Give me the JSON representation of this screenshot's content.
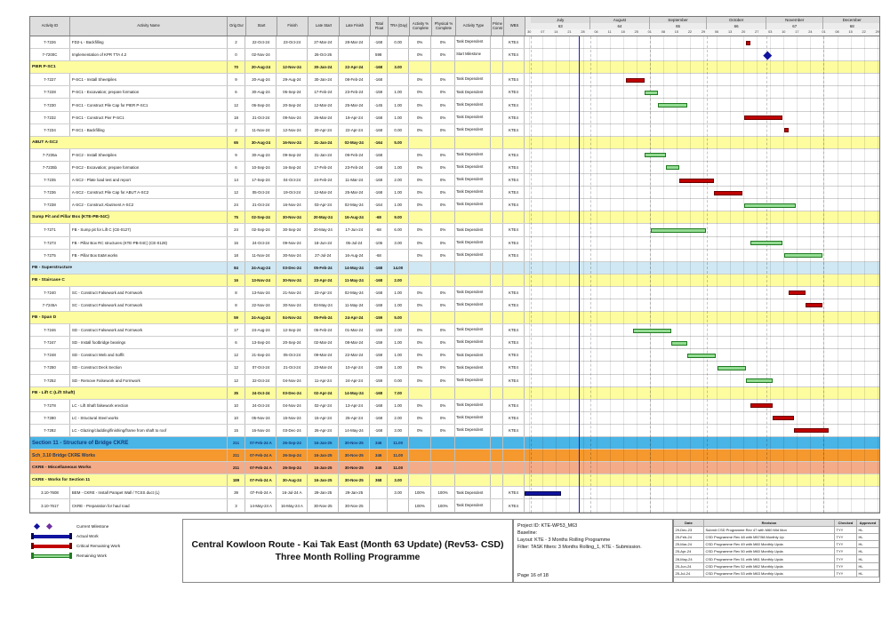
{
  "colors": {
    "critical": "#c00000",
    "remaining": "#93dc93",
    "actual": "#10139e",
    "milestone": "#10139e",
    "data_date_line": "#2020b8",
    "group_yellow": "#fdfc9e",
    "group_lightblue": "#cfe8f3",
    "section_cyan": "#49b4e6",
    "group_orange": "#f5982e",
    "group_salmon": "#f4ab88"
  },
  "columns": [
    {
      "key": "id",
      "label": "Activity ID"
    },
    {
      "key": "name",
      "label": "Activity Name"
    },
    {
      "key": "od",
      "label": "Orig Dur"
    },
    {
      "key": "start",
      "label": "Start"
    },
    {
      "key": "finish",
      "label": "Finish"
    },
    {
      "key": "ls",
      "label": "Late Start"
    },
    {
      "key": "lf",
      "label": "Late Finish"
    },
    {
      "key": "tf",
      "label": "Total Float"
    },
    {
      "key": "tra",
      "label": "TRA (Day)"
    },
    {
      "key": "ap",
      "label": "Activity % Complete"
    },
    {
      "key": "pp",
      "label": "Physical % Complete"
    },
    {
      "key": "at",
      "label": "Activity Type"
    },
    {
      "key": "pc",
      "label": "Prime Const"
    },
    {
      "key": "wbs",
      "label": "WBS"
    }
  ],
  "timeline": {
    "start": "28-Jun-24",
    "end": "31-Dec-24",
    "data_date": "26-Jul-24",
    "months": [
      {
        "label": "July",
        "num": "63",
        "from": "01-Jul-24"
      },
      {
        "label": "August",
        "num": "64",
        "from": "01-Aug-24"
      },
      {
        "label": "September",
        "num": "65",
        "from": "01-Sep-24"
      },
      {
        "label": "October",
        "num": "66",
        "from": "01-Oct-24"
      },
      {
        "label": "November",
        "num": "67",
        "from": "01-Nov-24"
      },
      {
        "label": "December",
        "num": "68",
        "from": "01-Dec-24"
      }
    ],
    "week_ticks": {
      "first": "30-Jun-24",
      "labels": [
        "30",
        "07",
        "14",
        "21",
        "28",
        "04",
        "11",
        "18",
        "25",
        "01",
        "08",
        "15",
        "22",
        "29",
        "06",
        "13",
        "20",
        "27",
        "03",
        "10",
        "17",
        "24",
        "01",
        "08",
        "15",
        "22",
        "29"
      ]
    }
  },
  "rows": [
    {
      "style": "task",
      "id": "7-7226",
      "name": "FD2-L -  Backfilling",
      "od": "2",
      "start": "22-Oct-24",
      "finish": "23-Oct-24",
      "ls": "27-Mar-24",
      "lf": "28-Mar-24",
      "tf": "-168",
      "tra": "0.00",
      "ap": "0%",
      "pp": "0%",
      "at": "Task Dependent",
      "wbs": "KTE4",
      "bar": {
        "kind": "critical",
        "s": "22-Oct-24",
        "e": "23-Oct-24"
      }
    },
    {
      "style": "task",
      "id": "7-7200C",
      "name": "Implementation of KPR TTA 4.2",
      "od": "0",
      "start": "02-Nov-24",
      "finish": "",
      "ls": "26-Oct-26",
      "lf": "",
      "tf": "598",
      "tra": "",
      "ap": "0%",
      "pp": "0%",
      "at": "Start Milestone",
      "wbs": "KTE4",
      "bar": {
        "kind": "milestone",
        "s": "02-Nov-24"
      }
    },
    {
      "style": "yellow",
      "name": "PIER P-SC1",
      "od": "70",
      "start": "20-Aug-24",
      "finish": "12-Nov-24",
      "ls": "30-Jan-24",
      "lf": "22-Apr-24",
      "tf": "-168",
      "tra": "3.00"
    },
    {
      "style": "task",
      "id": "7-7227",
      "name": "P-SC1 - Install Sheetpiles",
      "od": "9",
      "start": "20-Aug-24",
      "finish": "29-Aug-24",
      "ls": "30-Jan-24",
      "lf": "08-Feb-24",
      "tf": "-168",
      "tra": "",
      "ap": "0%",
      "pp": "0%",
      "at": "Task Dependent",
      "wbs": "KTE4",
      "bar": {
        "kind": "critical",
        "s": "20-Aug-24",
        "e": "29-Aug-24"
      }
    },
    {
      "style": "task",
      "id": "7-7228",
      "name": "P-SC1 - Excavation; prepare formation",
      "od": "6",
      "start": "30-Aug-24",
      "finish": "05-Sep-24",
      "ls": "17-Feb-24",
      "lf": "23-Feb-24",
      "tf": "-159",
      "tra": "1.00",
      "ap": "0%",
      "pp": "0%",
      "at": "Task Dependent",
      "wbs": "KTE4",
      "bar": {
        "kind": "remaining",
        "s": "30-Aug-24",
        "e": "05-Sep-24"
      }
    },
    {
      "style": "task",
      "id": "7-7230",
      "name": "P-SC1 - Construct Pile Cap for PIER P-SC1",
      "od": "12",
      "start": "06-Sep-24",
      "finish": "20-Sep-24",
      "ls": "12-Mar-24",
      "lf": "25-Mar-24",
      "tf": "-145",
      "tra": "1.00",
      "ap": "0%",
      "pp": "0%",
      "at": "Task Dependent",
      "wbs": "KTE4",
      "bar": {
        "kind": "remaining",
        "s": "06-Sep-24",
        "e": "20-Sep-24"
      }
    },
    {
      "style": "task",
      "id": "7-7232",
      "name": "P-SC1 - Construct Pier P-SC1",
      "od": "18",
      "start": "21-Oct-24",
      "finish": "09-Nov-24",
      "ls": "26-Mar-24",
      "lf": "19-Apr-24",
      "tf": "-168",
      "tra": "1.00",
      "ap": "0%",
      "pp": "0%",
      "at": "Task Dependent",
      "wbs": "KTE4",
      "bar": {
        "kind": "critical",
        "s": "21-Oct-24",
        "e": "09-Nov-24"
      }
    },
    {
      "style": "task",
      "id": "7-7234",
      "name": "P-SC1 -  Backfilling",
      "od": "2",
      "start": "11-Nov-24",
      "finish": "12-Nov-24",
      "ls": "20-Apr-24",
      "lf": "22-Apr-24",
      "tf": "-168",
      "tra": "0.00",
      "ap": "0%",
      "pp": "0%",
      "at": "Task Dependent",
      "wbs": "KTE4",
      "bar": {
        "kind": "critical",
        "s": "11-Nov-24",
        "e": "12-Nov-24"
      }
    },
    {
      "style": "yellow",
      "name": "ABUT A-SC2",
      "od": "65",
      "start": "30-Aug-24",
      "finish": "16-Nov-24",
      "ls": "31-Jan-24",
      "lf": "02-May-24",
      "tf": "-164",
      "tra": "5.00"
    },
    {
      "style": "task",
      "id": "7-7235a",
      "name": "P-SC2 - Install Sheetpiles",
      "od": "9",
      "start": "30-Aug-24",
      "finish": "09-Sep-24",
      "ls": "31-Jan-24",
      "lf": "09-Feb-24",
      "tf": "-168",
      "tra": "",
      "ap": "0%",
      "pp": "0%",
      "at": "Task Dependent",
      "wbs": "KTE4",
      "bar": {
        "kind": "remaining",
        "s": "30-Aug-24",
        "e": "09-Sep-24"
      }
    },
    {
      "style": "task",
      "id": "7-7235b",
      "name": "P-SC2 - Excavation; prepare formation",
      "od": "6",
      "start": "10-Sep-24",
      "finish": "16-Sep-24",
      "ls": "17-Feb-24",
      "lf": "23-Feb-24",
      "tf": "-168",
      "tra": "1.00",
      "ap": "0%",
      "pp": "0%",
      "at": "Task Dependent",
      "wbs": "KTE4",
      "bar": {
        "kind": "remaining",
        "s": "10-Sep-24",
        "e": "16-Sep-24"
      }
    },
    {
      "style": "task",
      "id": "7-7235",
      "name": "A-SC2 - Plate load test and report",
      "od": "14",
      "start": "17-Sep-24",
      "finish": "04-Oct-24",
      "ls": "24-Feb-24",
      "lf": "11-Mar-24",
      "tf": "-168",
      "tra": "2.00",
      "ap": "0%",
      "pp": "0%",
      "at": "Task Dependent",
      "wbs": "KTE4",
      "bar": {
        "kind": "critical",
        "s": "17-Sep-24",
        "e": "04-Oct-24"
      }
    },
    {
      "style": "task",
      "id": "7-7236",
      "name": "A-SC2 - Construct Pile Cap for ABUT A-SC2",
      "od": "12",
      "start": "05-Oct-24",
      "finish": "19-Oct-24",
      "ls": "12-Mar-24",
      "lf": "25-Mar-24",
      "tf": "-168",
      "tra": "1.00",
      "ap": "0%",
      "pp": "0%",
      "at": "Task Dependent",
      "wbs": "KTE4",
      "bar": {
        "kind": "critical",
        "s": "05-Oct-24",
        "e": "19-Oct-24"
      }
    },
    {
      "style": "task",
      "id": "7-7238",
      "name": "A-SC2 - Construct Abutment A-SC2",
      "od": "24",
      "start": "21-Oct-24",
      "finish": "16-Nov-24",
      "ls": "03-Apr-24",
      "lf": "02-May-24",
      "tf": "-164",
      "tra": "1.00",
      "ap": "0%",
      "pp": "0%",
      "at": "Task Dependent",
      "wbs": "KTE4",
      "bar": {
        "kind": "remaining",
        "s": "21-Oct-24",
        "e": "16-Nov-24"
      }
    },
    {
      "style": "yellow",
      "name": "Sump Pit and Pillar Box (KTE-PB-04C)",
      "od": "75",
      "start": "02-Sep-24",
      "finish": "30-Nov-24",
      "ls": "20-May-24",
      "lf": "16-Aug-24",
      "tf": "-68",
      "tra": "9.00"
    },
    {
      "style": "task",
      "id": "7-7271",
      "name": "FB - Sump pit for Lift C (CE-0127)",
      "od": "24",
      "start": "02-Sep-24",
      "finish": "30-Sep-24",
      "ls": "20-May-24",
      "lf": "17-Jun-24",
      "tf": "-68",
      "tra": "6.00",
      "ap": "0%",
      "pp": "0%",
      "at": "Task Dependent",
      "wbs": "KTE4",
      "bar": {
        "kind": "remaining",
        "s": "02-Sep-24",
        "e": "30-Sep-24"
      }
    },
    {
      "style": "task",
      "id": "7-7273",
      "name": "FB - Pillar Box RC structures (KTE-PB-04C) (CE-0128)",
      "od": "15",
      "start": "24-Oct-24",
      "finish": "09-Nov-24",
      "ls": "18-Jun-24",
      "lf": "05-Jul-24",
      "tf": "-106",
      "tra": "3.00",
      "ap": "0%",
      "pp": "0%",
      "at": "Task Dependent",
      "wbs": "KTE4",
      "bar": {
        "kind": "remaining",
        "s": "24-Oct-24",
        "e": "09-Nov-24"
      }
    },
    {
      "style": "task",
      "id": "7-7275",
      "name": "FB - Pillar Box E&M works",
      "od": "18",
      "start": "11-Nov-24",
      "finish": "30-Nov-24",
      "ls": "27-Jul-24",
      "lf": "16-Aug-24",
      "tf": "-68",
      "tra": "",
      "ap": "0%",
      "pp": "0%",
      "at": "Task Dependent",
      "wbs": "KTE4",
      "bar": {
        "kind": "remaining",
        "s": "11-Nov-24",
        "e": "30-Nov-24"
      }
    },
    {
      "style": "lightblue",
      "name": "FB - Superstructure",
      "od": "84",
      "start": "24-Aug-24",
      "finish": "03-Dec-24",
      "ls": "05-Feb-24",
      "lf": "14-May-24",
      "tf": "-168",
      "tra": "14.00"
    },
    {
      "style": "yellow",
      "name": "FB - Staircase C",
      "od": "16",
      "start": "13-Nov-24",
      "finish": "30-Nov-24",
      "ls": "23-Apr-24",
      "lf": "11-May-24",
      "tf": "-168",
      "tra": "2.00"
    },
    {
      "style": "task",
      "id": "7-7240",
      "name": "SC - Construct Falsework and Formwork",
      "od": "8",
      "start": "13-Nov-24",
      "finish": "21-Nov-24",
      "ls": "23-Apr-24",
      "lf": "02-May-24",
      "tf": "-168",
      "tra": "1.00",
      "ap": "0%",
      "pp": "0%",
      "at": "Task Dependent",
      "wbs": "KTE4",
      "bar": {
        "kind": "critical",
        "s": "13-Nov-24",
        "e": "21-Nov-24"
      }
    },
    {
      "style": "task",
      "id": "7-7245A",
      "name": "SC - Construct Falsework and Formwork",
      "od": "8",
      "start": "22-Nov-24",
      "finish": "30-Nov-24",
      "ls": "03-May-24",
      "lf": "11-May-24",
      "tf": "-168",
      "tra": "1.00",
      "ap": "0%",
      "pp": "0%",
      "at": "Task Dependent",
      "wbs": "KTE4",
      "bar": {
        "kind": "critical",
        "s": "22-Nov-24",
        "e": "30-Nov-24"
      }
    },
    {
      "style": "yellow",
      "name": "FB - Span D",
      "od": "59",
      "start": "24-Aug-24",
      "finish": "04-Nov-24",
      "ls": "05-Feb-24",
      "lf": "24-Apr-24",
      "tf": "-159",
      "tra": "5.00"
    },
    {
      "style": "task",
      "id": "7-7246",
      "name": "SD - Construct Falsework and Formwork",
      "od": "17",
      "start": "24-Aug-24",
      "finish": "12-Sep-24",
      "ls": "05-Feb-24",
      "lf": "01-Mar-24",
      "tf": "-159",
      "tra": "2.00",
      "ap": "0%",
      "pp": "0%",
      "at": "Task Dependent",
      "wbs": "KTE4",
      "bar": {
        "kind": "remaining",
        "s": "24-Aug-24",
        "e": "12-Sep-24"
      }
    },
    {
      "style": "task",
      "id": "7-7247",
      "name": "SD - Install footbridge bearings",
      "od": "6",
      "start": "13-Sep-24",
      "finish": "20-Sep-24",
      "ls": "02-Mar-24",
      "lf": "08-Mar-24",
      "tf": "-159",
      "tra": "1.00",
      "ap": "0%",
      "pp": "0%",
      "at": "Task Dependent",
      "wbs": "KTE4",
      "bar": {
        "kind": "remaining",
        "s": "13-Sep-24",
        "e": "20-Sep-24"
      }
    },
    {
      "style": "task",
      "id": "7-7248",
      "name": "SD - Construct Web and Soffit",
      "od": "12",
      "start": "21-Sep-24",
      "finish": "05-Oct-24",
      "ls": "09-Mar-24",
      "lf": "22-Mar-24",
      "tf": "-159",
      "tra": "1.00",
      "ap": "0%",
      "pp": "0%",
      "at": "Task Dependent",
      "wbs": "KTE4",
      "bar": {
        "kind": "remaining",
        "s": "21-Sep-24",
        "e": "05-Oct-24"
      }
    },
    {
      "style": "task",
      "id": "7-7250",
      "name": "SD - Construct Deck Section",
      "od": "12",
      "start": "07-Oct-24",
      "finish": "21-Oct-24",
      "ls": "23-Mar-24",
      "lf": "10-Apr-24",
      "tf": "-159",
      "tra": "1.00",
      "ap": "0%",
      "pp": "0%",
      "at": "Task Dependent",
      "wbs": "KTE4",
      "bar": {
        "kind": "remaining",
        "s": "07-Oct-24",
        "e": "21-Oct-24"
      }
    },
    {
      "style": "task",
      "id": "7-7252",
      "name": "SD - Remove Falsework and Formwork",
      "od": "12",
      "start": "22-Oct-24",
      "finish": "04-Nov-24",
      "ls": "11-Apr-24",
      "lf": "24-Apr-24",
      "tf": "-159",
      "tra": "0.00",
      "ap": "0%",
      "pp": "0%",
      "at": "Task Dependent",
      "wbs": "KTE4",
      "bar": {
        "kind": "remaining",
        "s": "22-Oct-24",
        "e": "04-Nov-24"
      }
    },
    {
      "style": "yellow",
      "name": "FB - Lift C (Lift Shaft)",
      "od": "35",
      "start": "24-Oct-24",
      "finish": "03-Dec-24",
      "ls": "02-Apr-24",
      "lf": "14-May-24",
      "tf": "-168",
      "tra": "7.00"
    },
    {
      "style": "task",
      "id": "7-7278",
      "name": "LC - Lift Shaft falsework erection",
      "od": "10",
      "start": "24-Oct-24",
      "finish": "04-Nov-24",
      "ls": "02-Apr-24",
      "lf": "13-Apr-24",
      "tf": "-168",
      "tra": "1.00",
      "ap": "0%",
      "pp": "0%",
      "at": "Task Dependent",
      "wbs": "KTE4",
      "bar": {
        "kind": "critical",
        "s": "24-Oct-24",
        "e": "04-Nov-24"
      }
    },
    {
      "style": "task",
      "id": "7-7280",
      "name": "LC - Structural Steel works",
      "od": "10",
      "start": "05-Nov-24",
      "finish": "15-Nov-24",
      "ls": "15-Apr-24",
      "lf": "25-Apr-24",
      "tf": "-168",
      "tra": "2.00",
      "ap": "0%",
      "pp": "0%",
      "at": "Task Dependent",
      "wbs": "KTE4",
      "bar": {
        "kind": "critical",
        "s": "05-Nov-24",
        "e": "15-Nov-24"
      }
    },
    {
      "style": "task",
      "id": "7-7282",
      "name": "LC - Glazing/cladding/finishing/frame from shaft to roof",
      "od": "15",
      "start": "16-Nov-24",
      "finish": "03-Dec-24",
      "ls": "26-Apr-24",
      "lf": "14-May-24",
      "tf": "-168",
      "tra": "3.00",
      "ap": "0%",
      "pp": "0%",
      "at": "Task Dependent",
      "wbs": "KTE4",
      "bar": {
        "kind": "critical",
        "s": "16-Nov-24",
        "e": "03-Dec-24"
      }
    },
    {
      "style": "cyan",
      "name": "Section 11 - Structure of Bridge CKRE",
      "od": "211",
      "start": "07-Feb-24 A",
      "finish": "26-Sep-24",
      "ls": "16-Jan-25",
      "lf": "30-Nov-25",
      "tf": "346",
      "tra": "11.00"
    },
    {
      "style": "orange",
      "name": "Sch_3.10 Bridge CKRE Works",
      "od": "211",
      "start": "07-Feb-24 A",
      "finish": "26-Sep-24",
      "ls": "16-Jan-25",
      "lf": "30-Nov-25",
      "tf": "346",
      "tra": "11.00"
    },
    {
      "style": "salmon",
      "name": "CKRE - Miscellaneous Works",
      "od": "211",
      "start": "07-Feb-24 A",
      "finish": "26-Sep-24",
      "ls": "16-Jan-25",
      "lf": "30-Nov-25",
      "tf": "346",
      "tra": "11.00"
    },
    {
      "style": "yellow",
      "name": "CKRE - Works for Section 11",
      "od": "189",
      "start": "07-Feb-24 A",
      "finish": "30-Aug-24",
      "ls": "16-Jan-25",
      "lf": "30-Nov-25",
      "tf": "368",
      "tra": "3.00"
    },
    {
      "style": "task",
      "id": "3.10-7608",
      "name": "BEM - CKRE - Install Parapet Wall / TCSS duct (L)",
      "od": "39",
      "start": "07-Feb-24 A",
      "finish": "16-Jul-24 A",
      "ls": "29-Jan-25",
      "lf": "29-Jan-25",
      "tf": "",
      "tra": "3.00",
      "ap": "100%",
      "pp": "100%",
      "at": "Task Dependent",
      "wbs": "KTE4",
      "bar": {
        "kind": "actual",
        "s": "07-Feb-24",
        "e": "16-Jul-24"
      }
    },
    {
      "style": "task",
      "id": "3.10-7617",
      "name": "CKRE - Preparation for haul road",
      "od": "3",
      "start": "14-May-24 A",
      "finish": "16-May-24 A",
      "ls": "30-Nov-25",
      "lf": "30-Nov-25",
      "tf": "",
      "tra": "",
      "ap": "100%",
      "pp": "100%",
      "at": "Task Dependent",
      "wbs": "KTE4"
    }
  ],
  "footer": {
    "legend": [
      {
        "glyph": "milestones",
        "label": "Current Milestone"
      },
      {
        "glyph": "actual",
        "label": "Actual Work"
      },
      {
        "glyph": "critical",
        "label": "Critical Remaining Work"
      },
      {
        "glyph": "remaining",
        "label": "Remaining Work"
      }
    ],
    "title_line1": "Central Kowloon Route - Kai Tak East (Month 63 Update) (Rev53- CSD)",
    "title_line2": "Three Month Rolling Programme",
    "project_info": [
      "Project ID: KTE-WP53_M63",
      "Baseline:",
      "Layout: KTE - 3 Months Rolling Programme",
      "Filter: TASK filters: 3 Months Rolling_1, KTE - Submission."
    ],
    "page_label": "Page 16 of 18",
    "revisions": {
      "headers": [
        "Date",
        "Revision",
        "Checked",
        "Approved"
      ],
      "rows": [
        [
          "29-Dec-23",
          "Submit CSD Programme Rev 47 with M60 Mid Mon",
          "TYY",
          "HL"
        ],
        [
          "25-Feb-24",
          "CSD Programme Rev 48 with M57/58 Monthly Up",
          "TYY",
          "HL"
        ],
        [
          "25-Mar-24",
          "CSD Programme Rev 49 with M60 Monthly Upda",
          "TYY",
          "HL"
        ],
        [
          "25-Apr-24",
          "CSD Programme Rev 50 with M60 Monthly Upda",
          "TYY",
          "HL"
        ],
        [
          "28-May-24",
          "CSD Programme Rev 51 with M61 Monthly Upda",
          "TYY",
          "HL"
        ],
        [
          "25-Jun-24",
          "CSD Programme Rev 52 with M62 Monthly Upda",
          "TYY",
          "HL"
        ],
        [
          "25-Jul-24",
          "CSD Programme Rev 53 with M63 Monthly Upda",
          "TYY",
          "HL"
        ]
      ]
    }
  }
}
